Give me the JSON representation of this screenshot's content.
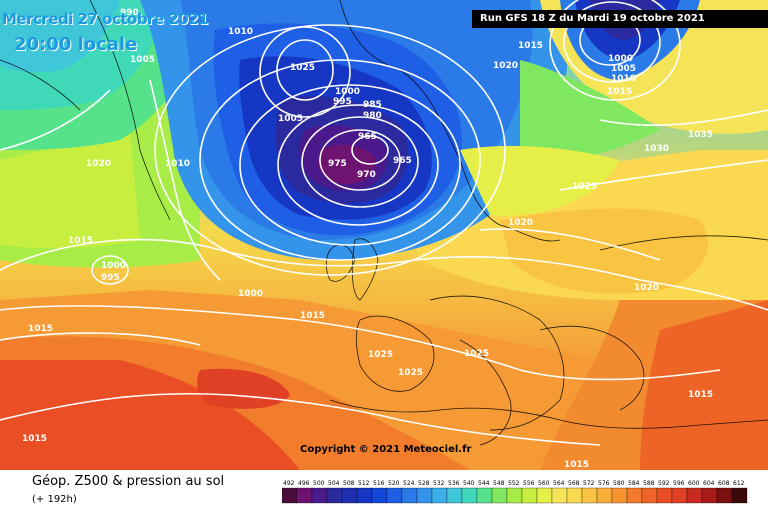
{
  "header": {
    "date_text": "Mercredi 27 octobre 2021",
    "time_text": "20:00 locale",
    "run_text": "Run GFS 18 Z du Mardi 19 octobre 2021"
  },
  "map": {
    "copyright": "Copyright © 2021 Meteociel.fr",
    "isobar_labels": [
      "990",
      "1010",
      "1005",
      "1025",
      "1000",
      "985",
      "995",
      "980",
      "965",
      "975",
      "970",
      "965",
      "1015",
      "1020",
      "1000",
      "1005",
      "1010",
      "1015",
      "1035",
      "1030",
      "1025",
      "1020",
      "1020",
      "1010",
      "1000",
      "995",
      "1000",
      "1015",
      "1015",
      "1025",
      "1025",
      "1025",
      "1015",
      "1015",
      "1015",
      "1015",
      "1020",
      "1005"
    ]
  },
  "footer": {
    "product_title": "Géop. Z500 & pression au sol",
    "lead_time": "(+ 192h)"
  },
  "scale": {
    "ticks": [
      "492",
      "496",
      "500",
      "504",
      "508",
      "512",
      "516",
      "520",
      "524",
      "528",
      "532",
      "536",
      "540",
      "544",
      "548",
      "552",
      "556",
      "560",
      "564",
      "568",
      "572",
      "576",
      "580",
      "584",
      "588",
      "592",
      "596",
      "600",
      "604",
      "608",
      "612"
    ],
    "colors": [
      "#4b0d3c",
      "#6e1470",
      "#4a1a8c",
      "#2a2a9e",
      "#1d2fb0",
      "#1537c4",
      "#1246d8",
      "#1f5fe6",
      "#2a7ae8",
      "#3394ea",
      "#3aaee6",
      "#3fc6d8",
      "#3fd8b8",
      "#55e28a",
      "#80e860",
      "#a8ec48",
      "#c8ee40",
      "#e6ee48",
      "#f6e458",
      "#fad850",
      "#fac443",
      "#f8ae38",
      "#f69430",
      "#f27a2a",
      "#ee6426",
      "#ea4e24",
      "#e04024",
      "#c82a22",
      "#a61a1a",
      "#7a1010",
      "#3a0808"
    ]
  }
}
